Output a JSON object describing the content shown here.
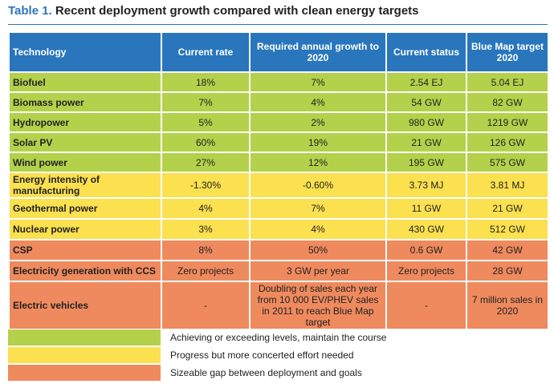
{
  "title": {
    "label": "Table 1.",
    "text": "Recent deployment growth compared with clean energy targets"
  },
  "table": {
    "headers": [
      "Technology",
      "Current rate",
      "Required annual growth to 2020",
      "Current status",
      "Blue Map target 2020"
    ],
    "header_color": "#2a76bd",
    "rows": [
      {
        "color": "#b3d14a",
        "cells": [
          "Biofuel",
          "18%",
          "7%",
          "2.54 EJ",
          "5.04 EJ"
        ]
      },
      {
        "color": "#b3d14a",
        "cells": [
          "Biomass power",
          "7%",
          "4%",
          "54 GW",
          "82 GW"
        ]
      },
      {
        "color": "#b3d14a",
        "cells": [
          "Hydropower",
          "5%",
          "2%",
          "980 GW",
          "1219 GW"
        ]
      },
      {
        "color": "#b3d14a",
        "cells": [
          "Solar PV",
          "60%",
          "19%",
          "21 GW",
          "126 GW"
        ]
      },
      {
        "color": "#b3d14a",
        "cells": [
          "Wind power",
          "27%",
          "12%",
          "195 GW",
          "575 GW"
        ]
      },
      {
        "color": "#fbe04f",
        "cells": [
          "Energy intensity of manufacturing",
          "-1.30%",
          "-0.60%",
          "3.73 MJ",
          "3.81 MJ"
        ]
      },
      {
        "color": "#fbe04f",
        "cells": [
          "Geothermal power",
          "4%",
          "7%",
          "11 GW",
          "21 GW"
        ]
      },
      {
        "color": "#fbe04f",
        "cells": [
          "Nuclear power",
          "3%",
          "4%",
          "430 GW",
          "512 GW"
        ]
      },
      {
        "color": "#ef8a5e",
        "cells": [
          "CSP",
          "8%",
          "50%",
          "0.6 GW",
          "42 GW"
        ]
      },
      {
        "color": "#ef8a5e",
        "cells": [
          "Electricity generation with CCS",
          "Zero projects",
          "3 GW per year",
          "Zero projects",
          "28 GW"
        ]
      },
      {
        "color": "#ef8a5e",
        "cells": [
          "Electric vehicles",
          "-",
          "Doubling of sales each year from 10 000 EV/PHEV sales in 2011 to reach Blue Map target",
          "-",
          "7 million sales in 2020"
        ]
      }
    ]
  },
  "legend": [
    {
      "color": "#b3d14a",
      "label": "Achieving or exceeding levels, maintain the course"
    },
    {
      "color": "#fbe04f",
      "label": "Progress but more concerted effort needed"
    },
    {
      "color": "#ef8a5e",
      "label": "Sizeable gap between deployment and goals"
    }
  ]
}
